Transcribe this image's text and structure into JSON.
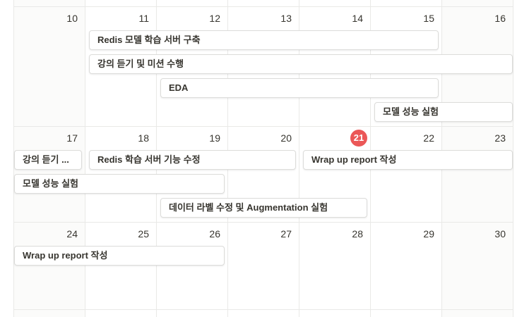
{
  "calendar": {
    "today": "21",
    "weeks": [
      {
        "days": [
          "10",
          "11",
          "12",
          "13",
          "14",
          "15",
          "16"
        ]
      },
      {
        "days": [
          "17",
          "18",
          "19",
          "20",
          "21",
          "22",
          "23"
        ]
      },
      {
        "days": [
          "24",
          "25",
          "26",
          "27",
          "28",
          "29",
          "30"
        ]
      }
    ],
    "events": [
      {
        "title": "Redis 모델 학습 서버 구축"
      },
      {
        "title": "강의 듣기 및 미션 수행"
      },
      {
        "title": "EDA"
      },
      {
        "title": "모델 성능 실험"
      },
      {
        "title": "강의 듣기 ..."
      },
      {
        "title": "Redis 학습 서버 기능 수정"
      },
      {
        "title": "Wrap up report 작성"
      },
      {
        "title": "모델 성능 실험"
      },
      {
        "title": "데이터 라벨 수정 및 Augmentation 실험"
      },
      {
        "title": "Wrap up report 작성"
      }
    ]
  }
}
